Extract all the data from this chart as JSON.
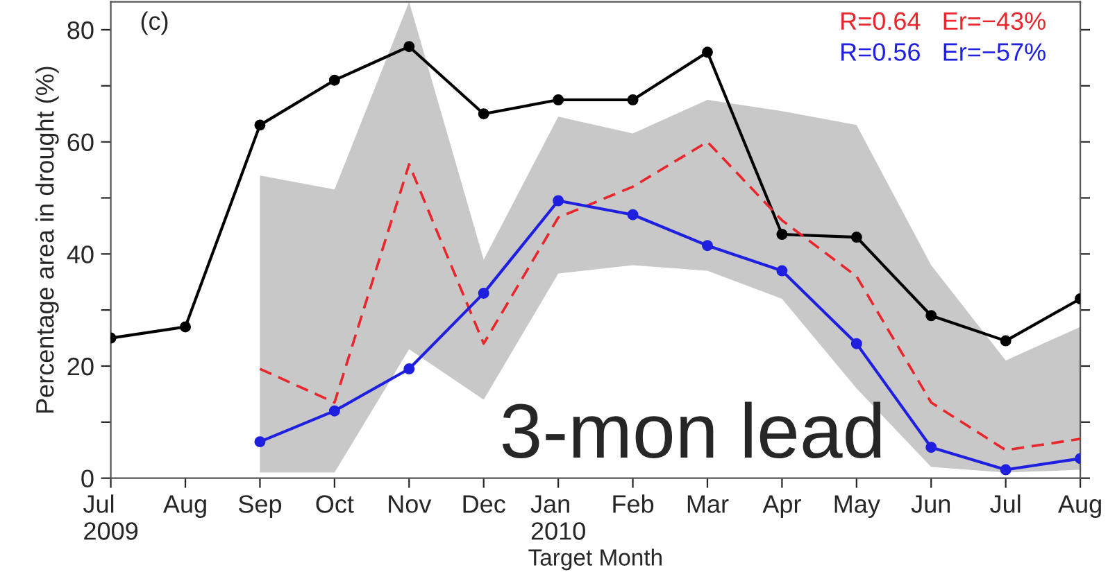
{
  "chart_data": {
    "type": "line",
    "xlabel": "Target Month",
    "ylabel": "Percentage area in drought (%)",
    "categories": [
      "Jul\n2009",
      "Aug",
      "Sep",
      "Oct",
      "Nov",
      "Dec",
      "Jan\n2010",
      "Feb",
      "Mar",
      "Apr",
      "May",
      "Jun",
      "Jul",
      "Aug"
    ],
    "ylim": [
      0,
      85
    ],
    "yticks": [
      0,
      {
        "value": 10,
        "label": null
      },
      20,
      {
        "value": 30,
        "label": null
      },
      40,
      {
        "value": 50,
        "label": null
      },
      60,
      {
        "value": 70,
        "label": null
      },
      80
    ],
    "series": [
      {
        "color": "#000000",
        "marker": "circle",
        "line_style": "solid",
        "values": [
          25,
          27,
          63,
          71,
          77,
          65,
          67.5,
          67.5,
          76,
          43.5,
          43,
          29,
          24.5,
          32
        ]
      },
      {
        "color": "#e8262b",
        "marker": "none",
        "line_style": "dashed",
        "values": [
          null,
          null,
          19.5,
          13.5,
          56,
          24,
          46.5,
          52,
          60,
          46,
          36,
          13.5,
          5,
          7
        ],
        "lower": [
          null,
          null,
          1,
          1,
          23,
          14,
          36.5,
          38,
          37,
          32,
          16,
          2,
          1,
          1.5
        ],
        "upper": [
          null,
          null,
          54,
          51.5,
          85,
          39,
          64.5,
          61.5,
          67.5,
          65.5,
          63,
          38,
          21,
          27
        ]
      },
      {
        "color": "#1f1fe0",
        "marker": "circle",
        "line_style": "solid",
        "values": [
          null,
          null,
          6.5,
          12,
          19.5,
          33,
          49.5,
          47,
          41.5,
          37,
          24,
          5.5,
          1.5,
          3.5
        ]
      }
    ],
    "annotations": [
      "(c)",
      "R=0.64   Er=−43%",
      "R=0.56   Er=−57%",
      "3-mon lead"
    ],
    "grid": false,
    "legend": false
  }
}
